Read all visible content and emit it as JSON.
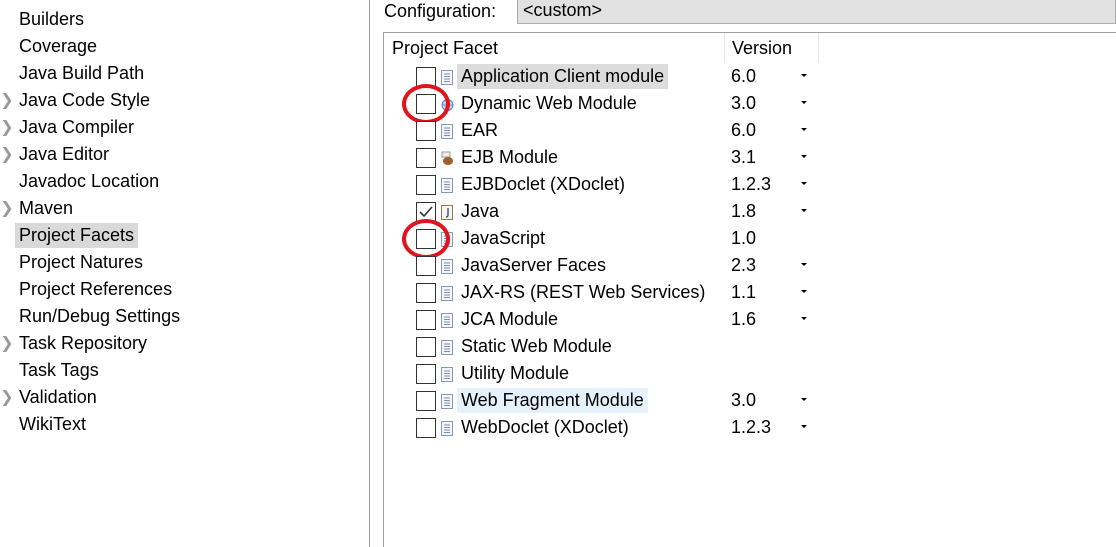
{
  "sidebar": {
    "items": [
      {
        "label": "Builders",
        "expandable": false
      },
      {
        "label": "Coverage",
        "expandable": false
      },
      {
        "label": "Java Build Path",
        "expandable": false
      },
      {
        "label": "Java Code Style",
        "expandable": true
      },
      {
        "label": "Java Compiler",
        "expandable": true
      },
      {
        "label": "Java Editor",
        "expandable": true
      },
      {
        "label": "Javadoc Location",
        "expandable": false
      },
      {
        "label": "Maven",
        "expandable": true
      },
      {
        "label": "Project Facets",
        "expandable": false,
        "selected": true
      },
      {
        "label": "Project Natures",
        "expandable": false
      },
      {
        "label": "Project References",
        "expandable": false
      },
      {
        "label": "Run/Debug Settings",
        "expandable": false
      },
      {
        "label": "Task Repository",
        "expandable": true
      },
      {
        "label": "Task Tags",
        "expandable": false
      },
      {
        "label": "Validation",
        "expandable": true
      },
      {
        "label": "WikiText",
        "expandable": false
      }
    ]
  },
  "configuration": {
    "label": "Configuration:",
    "value": "<custom>"
  },
  "table": {
    "headers": {
      "facet": "Project Facet",
      "version": "Version"
    },
    "rows": [
      {
        "name": "Application Client module",
        "version": "6.0",
        "checked": false,
        "dropdown": true,
        "icon": "document-icon",
        "highlight": "gray"
      },
      {
        "name": "Dynamic Web Module",
        "version": "3.0",
        "checked": false,
        "dropdown": true,
        "icon": "globe-icon",
        "annotated": true
      },
      {
        "name": "EAR",
        "version": "6.0",
        "checked": false,
        "dropdown": true,
        "icon": "document-icon"
      },
      {
        "name": "EJB Module",
        "version": "3.1",
        "checked": false,
        "dropdown": true,
        "icon": "bean-icon"
      },
      {
        "name": "EJBDoclet (XDoclet)",
        "version": "1.2.3",
        "checked": false,
        "dropdown": true,
        "icon": "document-icon"
      },
      {
        "name": "Java",
        "version": "1.8",
        "checked": true,
        "dropdown": true,
        "icon": "java-file-icon"
      },
      {
        "name": "JavaScript",
        "version": "1.0",
        "checked": false,
        "dropdown": false,
        "icon": "document-icon",
        "annotated": true
      },
      {
        "name": "JavaServer Faces",
        "version": "2.3",
        "checked": false,
        "dropdown": true,
        "icon": "document-icon"
      },
      {
        "name": "JAX-RS (REST Web Services)",
        "version": "1.1",
        "checked": false,
        "dropdown": true,
        "icon": "document-icon"
      },
      {
        "name": "JCA Module",
        "version": "1.6",
        "checked": false,
        "dropdown": true,
        "icon": "document-icon"
      },
      {
        "name": "Static Web Module",
        "version": "",
        "checked": false,
        "dropdown": false,
        "icon": "document-icon"
      },
      {
        "name": "Utility Module",
        "version": "",
        "checked": false,
        "dropdown": false,
        "icon": "document-icon"
      },
      {
        "name": "Web Fragment Module",
        "version": "3.0",
        "checked": false,
        "dropdown": true,
        "icon": "document-icon",
        "highlight": "blue"
      },
      {
        "name": "WebDoclet (XDoclet)",
        "version": "1.2.3",
        "checked": false,
        "dropdown": true,
        "icon": "document-icon"
      }
    ]
  },
  "colors": {
    "annotation": "#e0141e",
    "selection": "#d9d9d9",
    "hover": "#e5f1fb"
  }
}
